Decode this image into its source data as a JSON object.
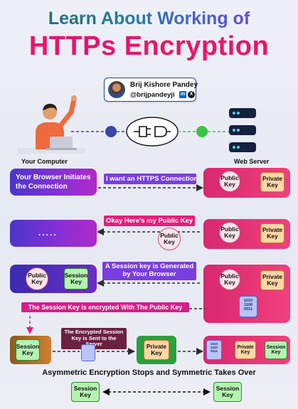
{
  "header": {
    "title_line1": "Learn About Working of",
    "title_line2": "HTTPs Encryption"
  },
  "author": {
    "name": "Brij Kishore Pandey",
    "handle": "@brijpandeyji",
    "linkedin_glyph": "in",
    "x_glyph": "X"
  },
  "top": {
    "computer_label": "Your Computer",
    "server_label": "Web Server"
  },
  "step1": {
    "box_text": "Your Browser Initiates the Connection",
    "message": "I want an HTTPS Connection",
    "public_key": "Public Key",
    "private_key": "Private Key"
  },
  "step2": {
    "box_text": ".....",
    "message": "Okay Here's my Public Key",
    "public_key_travel": "Public Key",
    "public_key": "Public Key",
    "private_key": "Private Key"
  },
  "step3": {
    "public_key": "Public Key",
    "session_key": "Session Key",
    "message": "A Session key is Generated by Your Browser",
    "server_public_key": "Public Key",
    "server_private_key": "Private Key",
    "encrypted_bits": "1010 1100 0011"
  },
  "step4": {
    "message": "The Session Key is encrypted With The Public Key"
  },
  "step5": {
    "session_key": "Session Key",
    "message": "The Encrypted Session Key is Sent to the Server",
    "private_key": "Private Key",
    "server_private_key": "Private Key",
    "server_session_key": "Session Key",
    "encrypted_bits": "1010 1100 0011"
  },
  "footer": {
    "caption": "Asymmetric Encryption Stops and Symmetric Takes Over",
    "left_key": "Session Key",
    "right_key": "Session Key"
  },
  "colors": {
    "title_pink": "#e8156b",
    "gradient_purple": "#6b2bc6",
    "server_red": "#e0306f",
    "connector_blue": "#3b45a8",
    "connector_green": "#3cc34a"
  },
  "icons": [
    "person-icon",
    "laptop-icon",
    "server-icon",
    "plug-icon",
    "key-icon",
    "shield-bits-icon",
    "linkedin-icon",
    "x-icon"
  ]
}
